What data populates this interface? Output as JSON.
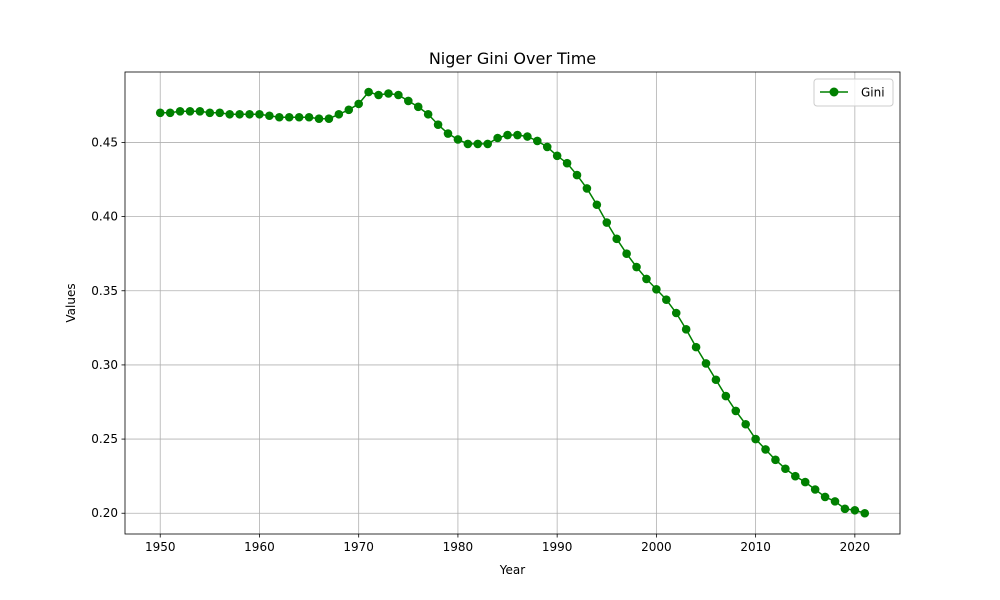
{
  "chart_data": {
    "type": "line",
    "title": "Niger Gini Over Time",
    "xlabel": "Year",
    "ylabel": "Values",
    "xlim": [
      1946.45,
      2024.55
    ],
    "ylim": [
      0.186,
      0.4975
    ],
    "xticks": [
      1950,
      1960,
      1970,
      1980,
      1990,
      2000,
      2010,
      2020
    ],
    "xtick_labels": [
      "1950",
      "1960",
      "1970",
      "1980",
      "1990",
      "2000",
      "2010",
      "2020"
    ],
    "yticks": [
      0.2,
      0.25,
      0.3,
      0.35,
      0.4,
      0.45
    ],
    "ytick_labels": [
      "0.20",
      "0.25",
      "0.30",
      "0.35",
      "0.40",
      "0.45"
    ],
    "grid": true,
    "legend_position": "top-right",
    "colors": {
      "series": "#008000",
      "grid": "#b0b0b0",
      "axis": "#000000"
    },
    "x": [
      1950,
      1951,
      1952,
      1953,
      1954,
      1955,
      1956,
      1957,
      1958,
      1959,
      1960,
      1961,
      1962,
      1963,
      1964,
      1965,
      1966,
      1967,
      1968,
      1969,
      1970,
      1971,
      1972,
      1973,
      1974,
      1975,
      1976,
      1977,
      1978,
      1979,
      1980,
      1981,
      1982,
      1983,
      1984,
      1985,
      1986,
      1987,
      1988,
      1989,
      1990,
      1991,
      1992,
      1993,
      1994,
      1995,
      1996,
      1997,
      1998,
      1999,
      2000,
      2001,
      2002,
      2003,
      2004,
      2005,
      2006,
      2007,
      2008,
      2009,
      2010,
      2011,
      2012,
      2013,
      2014,
      2015,
      2016,
      2017,
      2018,
      2019,
      2020,
      2021
    ],
    "series": [
      {
        "name": "Gini",
        "marker": "circle",
        "values": [
          0.47,
          0.47,
          0.471,
          0.471,
          0.471,
          0.47,
          0.47,
          0.469,
          0.469,
          0.469,
          0.469,
          0.468,
          0.467,
          0.467,
          0.467,
          0.467,
          0.466,
          0.466,
          0.469,
          0.472,
          0.476,
          0.484,
          0.482,
          0.483,
          0.482,
          0.478,
          0.474,
          0.469,
          0.462,
          0.456,
          0.452,
          0.449,
          0.449,
          0.449,
          0.453,
          0.455,
          0.455,
          0.454,
          0.451,
          0.447,
          0.441,
          0.436,
          0.428,
          0.419,
          0.408,
          0.396,
          0.385,
          0.375,
          0.366,
          0.358,
          0.351,
          0.344,
          0.335,
          0.324,
          0.312,
          0.301,
          0.29,
          0.279,
          0.269,
          0.26,
          0.25,
          0.243,
          0.236,
          0.23,
          0.225,
          0.221,
          0.216,
          0.211,
          0.208,
          0.203,
          0.202,
          0.2
        ]
      }
    ]
  }
}
